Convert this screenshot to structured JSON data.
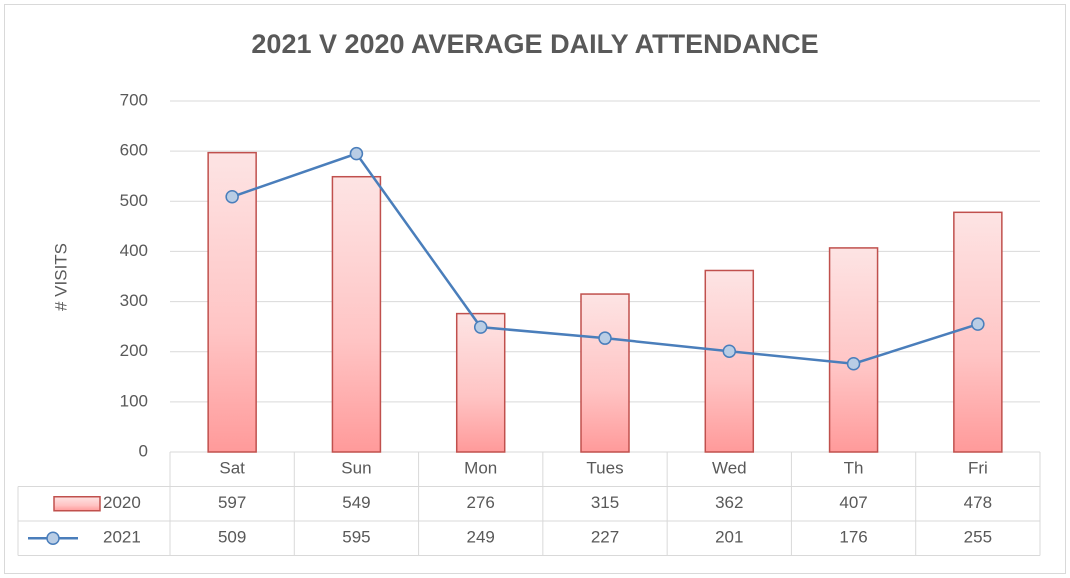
{
  "chart_data": {
    "type": "bar",
    "title": "2021 V 2020 AVERAGE DAILY ATTENDANCE",
    "y_label": "# VISITS",
    "categories": [
      "Sat",
      "Sun",
      "Mon",
      "Tues",
      "Wed",
      "Th",
      "Fri"
    ],
    "series": [
      {
        "name": "2020",
        "type": "bar",
        "color": "#c0504d",
        "values": [
          597,
          549,
          276,
          315,
          362,
          407,
          478
        ]
      },
      {
        "name": "2021",
        "type": "line",
        "color": "#4a7ebb",
        "values": [
          509,
          595,
          249,
          227,
          201,
          176,
          255
        ]
      }
    ],
    "ylim": [
      0,
      700
    ],
    "yticks": [
      0,
      100,
      200,
      300,
      400,
      500,
      600,
      700
    ],
    "grid": true,
    "data_table": true
  }
}
